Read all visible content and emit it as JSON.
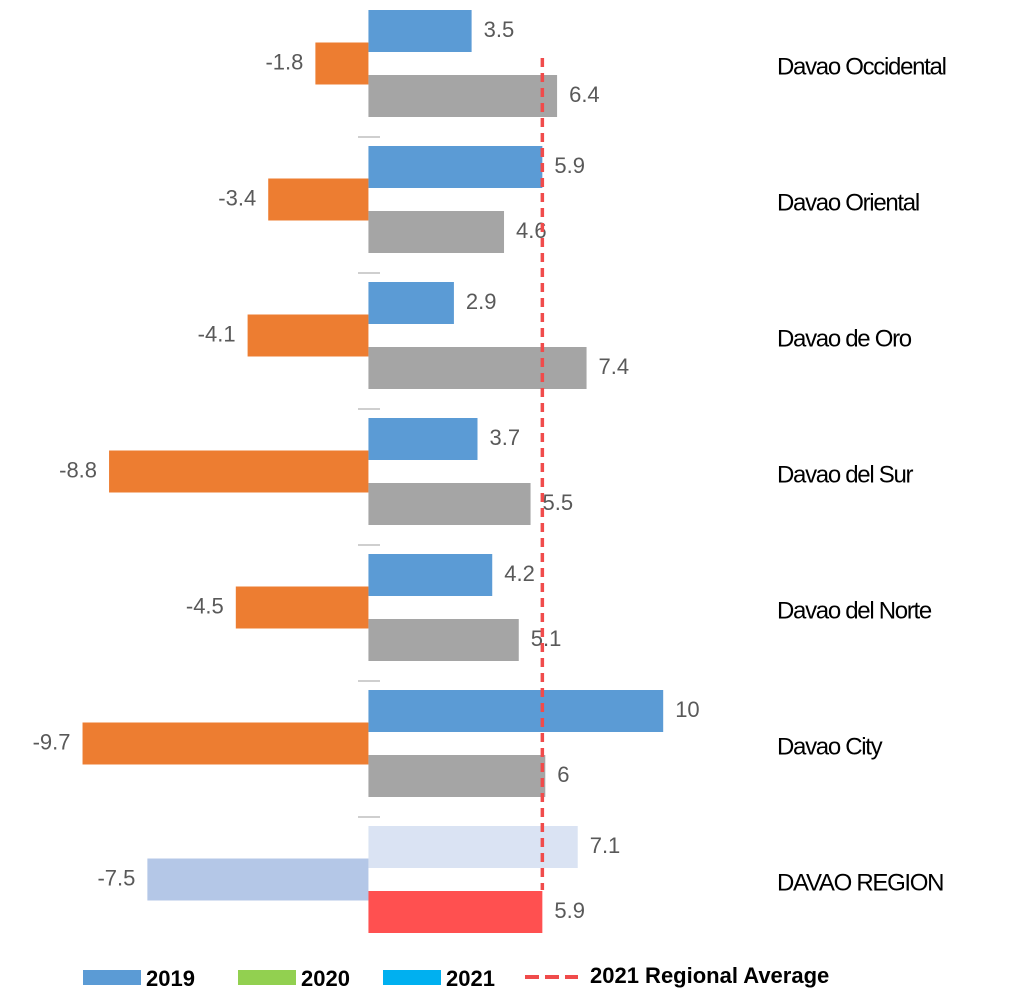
{
  "chart_data": {
    "type": "hbar",
    "categories": [
      "Davao Occidental",
      "Davao Oriental",
      "Davao de Oro",
      "Davao del Sur",
      "Davao del Norte",
      "Davao City",
      "DAVAO REGION"
    ],
    "series": [
      {
        "name": "2019",
        "color": "#5b9bd5",
        "values": [
          3.5,
          5.9,
          2.9,
          3.7,
          4.2,
          10,
          7.1
        ],
        "bar_colors": [
          "#5b9bd5",
          "#5b9bd5",
          "#5b9bd5",
          "#5b9bd5",
          "#5b9bd5",
          "#5b9bd5",
          "#dae3f3"
        ]
      },
      {
        "name": "2020",
        "color": "#92d050",
        "values": [
          -1.8,
          -3.4,
          -4.1,
          -8.8,
          -4.5,
          -9.7,
          -7.5
        ],
        "bar_colors": [
          "#ed7d31",
          "#ed7d31",
          "#ed7d31",
          "#ed7d31",
          "#ed7d31",
          "#ed7d31",
          "#b4c7e7"
        ]
      },
      {
        "name": "2021",
        "color": "#00b0f0",
        "values": [
          6.4,
          4.6,
          7.4,
          5.5,
          5.1,
          6,
          5.9
        ],
        "bar_colors": [
          "#a5a5a5",
          "#a5a5a5",
          "#a5a5a5",
          "#a5a5a5",
          "#a5a5a5",
          "#a5a5a5",
          "#ff5050"
        ]
      }
    ],
    "reference_line": {
      "name": "2021 Regional Average",
      "value": 5.9,
      "color": "#f04b4b"
    },
    "xlim": [
      -12.5,
      21.8
    ],
    "grid": false
  }
}
